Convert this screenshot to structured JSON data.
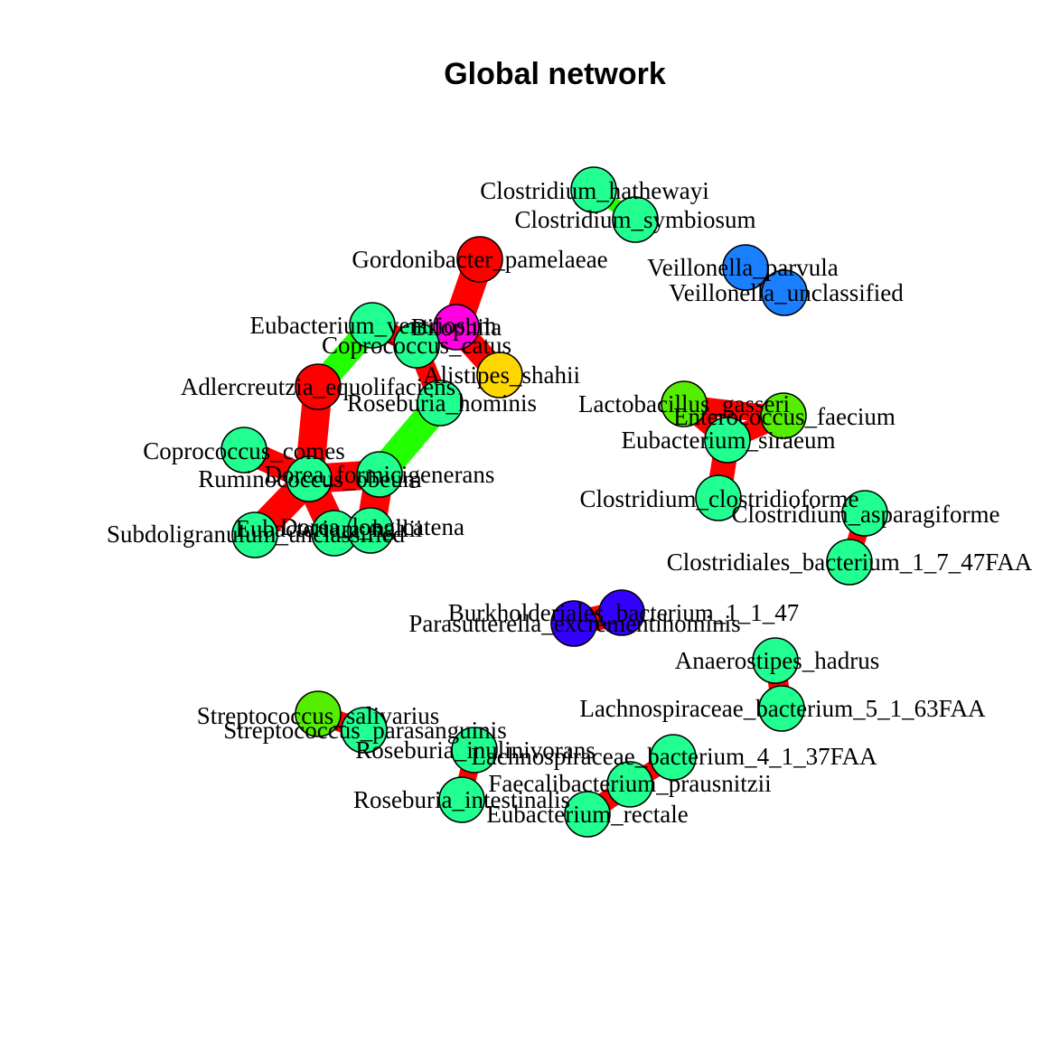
{
  "title": "Global network",
  "colors": {
    "positive_edge": "#ff0000",
    "negative_edge": "#22ff00",
    "node_green": "#20ff8f",
    "node_red": "#ff0000",
    "node_magenta": "#ff00e0",
    "node_gold": "#ffd700",
    "node_lime": "#55ee00",
    "node_blue": "#1a7fff",
    "node_violet": "#3300ff"
  },
  "nodes": [
    {
      "id": "clostridium_hathewayi",
      "label": "Clostridium_hathewayi",
      "color": "#20ff8f"
    },
    {
      "id": "clostridium_symbiosum",
      "label": "Clostridium_symbiosum",
      "color": "#20ff8f"
    },
    {
      "id": "gordonibacter_pamelaeae",
      "label": "Gordonibacter_pamelaeae",
      "color": "#ff0000"
    },
    {
      "id": "veillonella_parvula",
      "label": "Veillonella_parvula",
      "color": "#1a7fff"
    },
    {
      "id": "veillonella_unclassified",
      "label": "Veillonella_unclassified",
      "color": "#1a7fff"
    },
    {
      "id": "eubacterium_ventriosum",
      "label": "Eubacterium_ventriosum",
      "color": "#20ff8f"
    },
    {
      "id": "bilophila",
      "label": "Bilophila",
      "color": "#ff00e0"
    },
    {
      "id": "coprococcus_catus",
      "label": "Coprococcus_catus",
      "color": "#20ff8f"
    },
    {
      "id": "alistipes_shahii",
      "label": "Alistipes_shahii",
      "color": "#ffd700"
    },
    {
      "id": "adlercreutzia_equolifaciens",
      "label": "Adlercreutzia_equolifaciens",
      "color": "#ff0000"
    },
    {
      "id": "roseburia_hominis",
      "label": "Roseburia_hominis",
      "color": "#20ff8f"
    },
    {
      "id": "lactobacillus_gasseri",
      "label": "Lactobacillus_gasseri",
      "color": "#55ee00"
    },
    {
      "id": "enterococcus_faecium",
      "label": "Enterococcus_faecium",
      "color": "#55ee00"
    },
    {
      "id": "eubacterium_siraeum",
      "label": "Eubacterium_siraeum",
      "color": "#20ff8f"
    },
    {
      "id": "coprococcus_comes",
      "label": "Coprococcus_comes",
      "color": "#20ff8f"
    },
    {
      "id": "dorea_formicigenerans",
      "label": "Dorea_formicigenerans",
      "color": "#20ff8f"
    },
    {
      "id": "ruminococcus_obeum",
      "label": "Ruminococcus_obeum",
      "color": "#20ff8f"
    },
    {
      "id": "clostridium_clostridioforme",
      "label": "Clostridium_clostridioforme",
      "color": "#20ff8f"
    },
    {
      "id": "clostridium_asparagiforme",
      "label": "Clostridium_asparagiforme",
      "color": "#20ff8f"
    },
    {
      "id": "subdoligranulum_unclassified",
      "label": "Subdoligranulum_unclassified",
      "color": "#20ff8f"
    },
    {
      "id": "eubacterium_hallii",
      "label": "Eubacterium_hallii",
      "color": "#20ff8f"
    },
    {
      "id": "dorea_longicatena",
      "label": "Dorea_longicatena",
      "color": "#20ff8f"
    },
    {
      "id": "clostridiales_bacterium",
      "label": "Clostridiales_bacterium_1_7_47FAA",
      "color": "#20ff8f"
    },
    {
      "id": "burkholderiales_bacterium",
      "label": "Burkholderiales_bacterium_1_1_47",
      "color": "#3300ff"
    },
    {
      "id": "parasutterella",
      "label": "Parasutterella_excrementihominis",
      "color": "#3300ff"
    },
    {
      "id": "anaerostipes_hadrus",
      "label": "Anaerostipes_hadrus",
      "color": "#20ff8f"
    },
    {
      "id": "lachnospiraceae_5_1_63faa",
      "label": "Lachnospiraceae_bacterium_5_1_63FAA",
      "color": "#20ff8f"
    },
    {
      "id": "streptococcus_salivarius",
      "label": "Streptococcus_salivarius",
      "color": "#55ee00"
    },
    {
      "id": "streptococcus_parasanguinis",
      "label": "Streptococcus_parasanguinis",
      "color": "#20ff8f"
    },
    {
      "id": "roseburia_inulinivorans",
      "label": "Roseburia_inulinivorans",
      "color": "#20ff8f"
    },
    {
      "id": "lachnospiraceae_4_1_37faa",
      "label": "Lachnospiraceae_bacterium_4_1_37FAA",
      "color": "#20ff8f"
    },
    {
      "id": "faecalibacterium_prausnitzii",
      "label": "Faecalibacterium_prausnitzii",
      "color": "#20ff8f"
    },
    {
      "id": "roseburia_intestinalis",
      "label": "Roseburia_intestinalis",
      "color": "#20ff8f"
    },
    {
      "id": "eubacterium_rectale",
      "label": "Eubacterium_rectale",
      "color": "#20ff8f"
    }
  ],
  "edges": [
    {
      "source": "clostridium_hathewayi",
      "target": "clostridium_symbiosum",
      "sign": "negative",
      "weight": 0.3
    },
    {
      "source": "veillonella_parvula",
      "target": "veillonella_unclassified",
      "sign": "positive",
      "weight": 0.3
    },
    {
      "source": "gordonibacter_pamelaeae",
      "target": "bilophila",
      "sign": "positive",
      "weight": 1.0
    },
    {
      "source": "bilophila",
      "target": "alistipes_shahii",
      "sign": "positive",
      "weight": 0.8
    },
    {
      "source": "eubacterium_ventriosum",
      "target": "adlercreutzia_equolifaciens",
      "sign": "negative",
      "weight": 0.8
    },
    {
      "source": "eubacterium_ventriosum",
      "target": "coprococcus_catus",
      "sign": "positive",
      "weight": 0.6
    },
    {
      "source": "coprococcus_catus",
      "target": "roseburia_hominis",
      "sign": "positive",
      "weight": 0.6
    },
    {
      "source": "roseburia_hominis",
      "target": "dorea_formicigenerans",
      "sign": "negative",
      "weight": 1.0
    },
    {
      "source": "adlercreutzia_equolifaciens",
      "target": "ruminococcus_obeum",
      "sign": "positive",
      "weight": 1.0
    },
    {
      "source": "coprococcus_comes",
      "target": "ruminococcus_obeum",
      "sign": "positive",
      "weight": 0.8
    },
    {
      "source": "ruminococcus_obeum",
      "target": "subdoligranulum_unclassified",
      "sign": "positive",
      "weight": 1.0
    },
    {
      "source": "ruminococcus_obeum",
      "target": "dorea_formicigenerans",
      "sign": "positive",
      "weight": 1.0
    },
    {
      "source": "ruminococcus_obeum",
      "target": "eubacterium_hallii",
      "sign": "positive",
      "weight": 1.0
    },
    {
      "source": "dorea_formicigenerans",
      "target": "dorea_longicatena",
      "sign": "positive",
      "weight": 1.0
    },
    {
      "source": "eubacterium_hallii",
      "target": "dorea_longicatena",
      "sign": "positive",
      "weight": 0.8
    },
    {
      "source": "lactobacillus_gasseri",
      "target": "enterococcus_faecium",
      "sign": "positive",
      "weight": 0.5
    },
    {
      "source": "lactobacillus_gasseri",
      "target": "eubacterium_siraeum",
      "sign": "positive",
      "weight": 0.6
    },
    {
      "source": "enterococcus_faecium",
      "target": "eubacterium_siraeum",
      "sign": "positive",
      "weight": 0.6
    },
    {
      "source": "eubacterium_siraeum",
      "target": "clostridium_clostridioforme",
      "sign": "positive",
      "weight": 0.8
    },
    {
      "source": "clostridium_asparagiforme",
      "target": "clostridiales_bacterium",
      "sign": "positive",
      "weight": 0.5
    },
    {
      "source": "burkholderiales_bacterium",
      "target": "parasutterella",
      "sign": "positive",
      "weight": 0.8
    },
    {
      "source": "anaerostipes_hadrus",
      "target": "lachnospiraceae_5_1_63faa",
      "sign": "positive",
      "weight": 0.6
    },
    {
      "source": "streptococcus_salivarius",
      "target": "streptococcus_parasanguinis",
      "sign": "positive",
      "weight": 0.6
    },
    {
      "source": "roseburia_inulinivorans",
      "target": "roseburia_intestinalis",
      "sign": "positive",
      "weight": 0.5
    },
    {
      "source": "lachnospiraceae_4_1_37faa",
      "target": "faecalibacterium_prausnitzii",
      "sign": "positive",
      "weight": 0.5
    },
    {
      "source": "faecalibacterium_prausnitzii",
      "target": "eubacterium_rectale",
      "sign": "positive",
      "weight": 0.6
    }
  ]
}
